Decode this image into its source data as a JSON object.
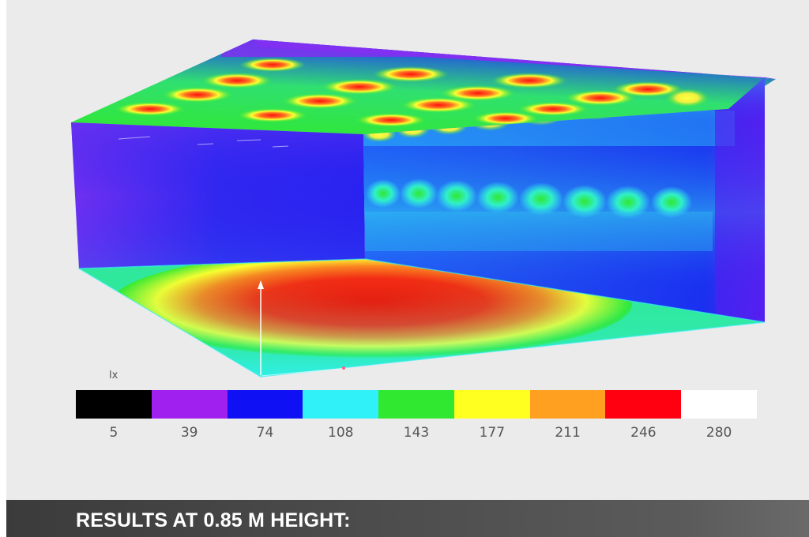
{
  "legend": {
    "unit": "lx",
    "colors": [
      "#000000",
      "#a020f0",
      "#1010f5",
      "#30f0f8",
      "#30e830",
      "#ffff20",
      "#ffa020",
      "#ff0010",
      "#ffffff"
    ],
    "ticks": [
      "5",
      "39",
      "74",
      "108",
      "143",
      "177",
      "211",
      "246",
      "280"
    ]
  },
  "footer": {
    "title": "RESULTS AT 0.85 M HEIGHT:"
  }
}
